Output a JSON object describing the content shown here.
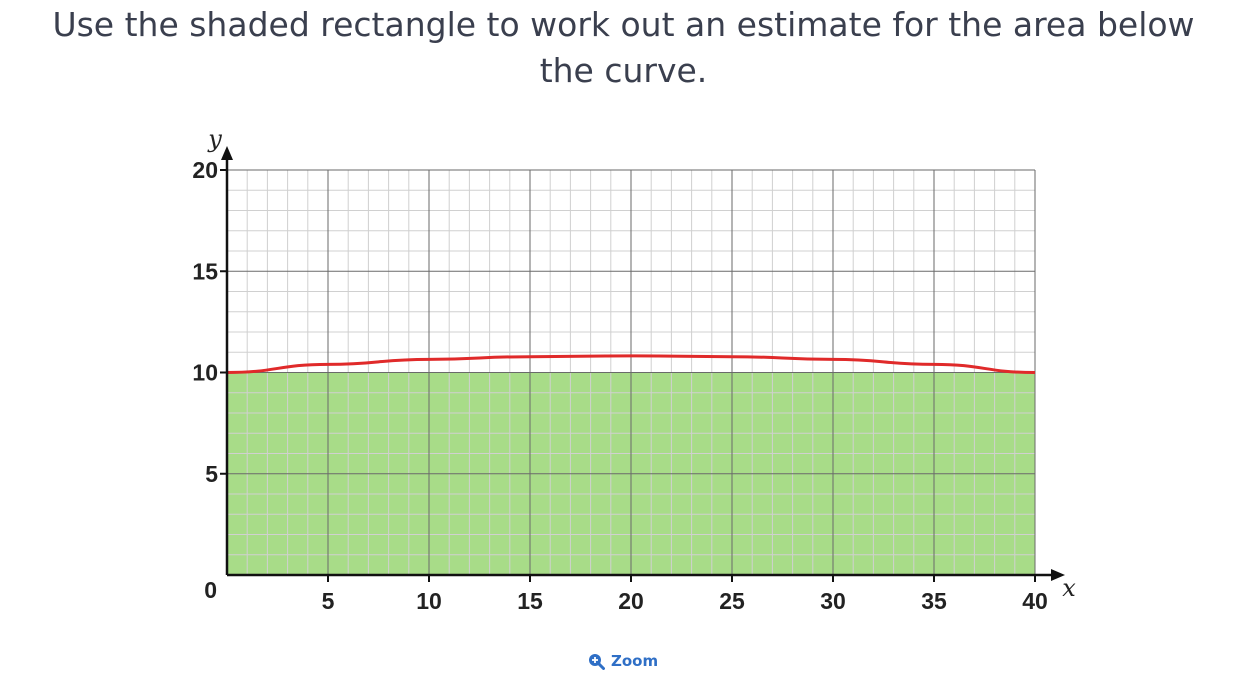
{
  "question": {
    "text": "Use the shaded rectangle to work out an estimate for the area below the curve."
  },
  "zoom": {
    "label": "Zoom",
    "icon": "zoom-in-icon"
  },
  "chart_data": {
    "type": "area",
    "title": "",
    "xlabel": "x",
    "ylabel": "y",
    "xlim": [
      0,
      40
    ],
    "ylim": [
      0,
      20
    ],
    "x_ticks": [
      0,
      5,
      10,
      15,
      20,
      25,
      30,
      35,
      40
    ],
    "y_ticks": [
      5,
      10,
      15,
      20
    ],
    "x_tick_labels": [
      "5",
      "10",
      "15",
      "20",
      "25",
      "30",
      "35",
      "40"
    ],
    "y_tick_labels": [
      "5",
      "10",
      "15",
      "20"
    ],
    "origin_label": "0",
    "grid": true,
    "minor_grid_step": 1,
    "major_grid_step": 5,
    "curve": {
      "x": [
        0,
        5,
        10,
        15,
        20,
        25,
        30,
        35,
        40
      ],
      "y": [
        10,
        10.4,
        10.65,
        10.78,
        10.82,
        10.78,
        10.65,
        10.4,
        10
      ],
      "color": "#e02a2a"
    },
    "shaded_rectangle": {
      "x": [
        0,
        40
      ],
      "y": [
        0,
        10
      ],
      "color": "#a8dc88"
    }
  }
}
